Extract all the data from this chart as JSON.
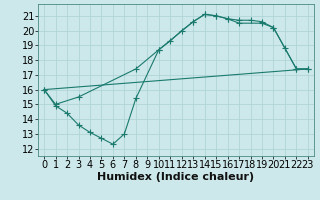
{
  "xlabel": "Humidex (Indice chaleur)",
  "bg_color": "#cde8ea",
  "grid_color": "#b0d5d8",
  "line_color": "#1a7a6e",
  "marker_color": "#1a7a6e",
  "xlim": [
    -0.5,
    23.5
  ],
  "ylim": [
    11.5,
    21.8
  ],
  "xticks": [
    0,
    1,
    2,
    3,
    4,
    5,
    6,
    7,
    8,
    9,
    10,
    11,
    12,
    13,
    14,
    15,
    16,
    17,
    18,
    19,
    20,
    21,
    22,
    23
  ],
  "yticks": [
    12,
    13,
    14,
    15,
    16,
    17,
    18,
    19,
    20,
    21
  ],
  "curve1_x": [
    0,
    1,
    2,
    3,
    4,
    5,
    6,
    7,
    8,
    10,
    11,
    12,
    13,
    14,
    15,
    16,
    17,
    18,
    19,
    20,
    21,
    22,
    23
  ],
  "curve1_y": [
    16.0,
    14.9,
    14.4,
    13.6,
    13.1,
    12.7,
    12.3,
    13.0,
    15.4,
    18.7,
    19.3,
    20.0,
    20.6,
    21.1,
    21.0,
    20.8,
    20.7,
    20.7,
    20.6,
    20.2,
    18.8,
    17.4,
    17.4
  ],
  "curve2_x": [
    0,
    1,
    3,
    8,
    10,
    13,
    14,
    15,
    16,
    17,
    19,
    20,
    22,
    23
  ],
  "curve2_y": [
    16.0,
    15.0,
    15.5,
    17.4,
    18.7,
    20.6,
    21.1,
    21.0,
    20.8,
    20.5,
    20.5,
    20.2,
    17.4,
    17.4
  ],
  "curve3_x": [
    0,
    23
  ],
  "curve3_y": [
    16.0,
    17.4
  ],
  "font_size_xlabel": 8,
  "font_size_ticks": 7
}
